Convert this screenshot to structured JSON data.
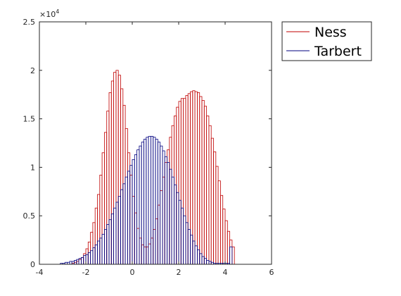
{
  "chart_data": {
    "type": "bar",
    "subtype": "overlaid-histogram",
    "title": "",
    "xlabel": "",
    "ylabel": "",
    "xlim": [
      -4,
      6
    ],
    "ylim": [
      0,
      25000
    ],
    "xticks": [
      -4,
      -2,
      0,
      2,
      4,
      6
    ],
    "yticks": [
      0,
      0.5,
      1,
      1.5,
      2,
      2.5
    ],
    "y_exponent_label": "×10",
    "y_exponent_power": "4",
    "grid": false,
    "legend": {
      "position": "outside-top-right",
      "entries": [
        "Ness",
        "Tarbert"
      ]
    },
    "bin_width": 0.1,
    "series": [
      {
        "name": "Ness",
        "edge_color": "#c00000",
        "bin_start": -2.6,
        "counts": [
          100,
          200,
          300,
          500,
          700,
          1100,
          1600,
          2300,
          3300,
          4300,
          5800,
          7200,
          9200,
          11500,
          13600,
          15800,
          17700,
          18900,
          19800,
          20000,
          19500,
          18100,
          16400,
          14000,
          11500,
          9200,
          7000,
          5300,
          3700,
          2700,
          2000,
          1800,
          1800,
          2100,
          2700,
          3600,
          4700,
          6100,
          7600,
          9000,
          10500,
          11800,
          13100,
          14300,
          15300,
          16200,
          16800,
          17100,
          17100,
          17400,
          17600,
          17800,
          17900,
          17800,
          17700,
          17300,
          16900,
          16300,
          15300,
          14300,
          13000,
          11600,
          10100,
          8600,
          7100,
          5700,
          4500,
          3400,
          2500,
          1800
        ]
      },
      {
        "name": "Tarbert",
        "edge_color": "#00007f",
        "bin_start": -3.2,
        "counts": [
          0,
          100,
          100,
          200,
          200,
          300,
          300,
          400,
          500,
          600,
          700,
          900,
          1000,
          1200,
          1400,
          1700,
          2000,
          2400,
          2700,
          3100,
          3600,
          4100,
          4600,
          5200,
          5800,
          6400,
          7000,
          7700,
          8300,
          9000,
          9600,
          10200,
          10800,
          11300,
          11800,
          12200,
          12600,
          12900,
          13100,
          13200,
          13200,
          13100,
          12900,
          12600,
          12200,
          11700,
          11100,
          10500,
          9800,
          9000,
          8200,
          7400,
          6600,
          5800,
          5000,
          4300,
          3600,
          3000,
          2400,
          1900,
          1500,
          1100,
          800,
          600,
          400,
          300,
          200,
          100,
          100,
          100,
          100,
          100,
          100,
          100,
          1800
        ]
      }
    ]
  }
}
